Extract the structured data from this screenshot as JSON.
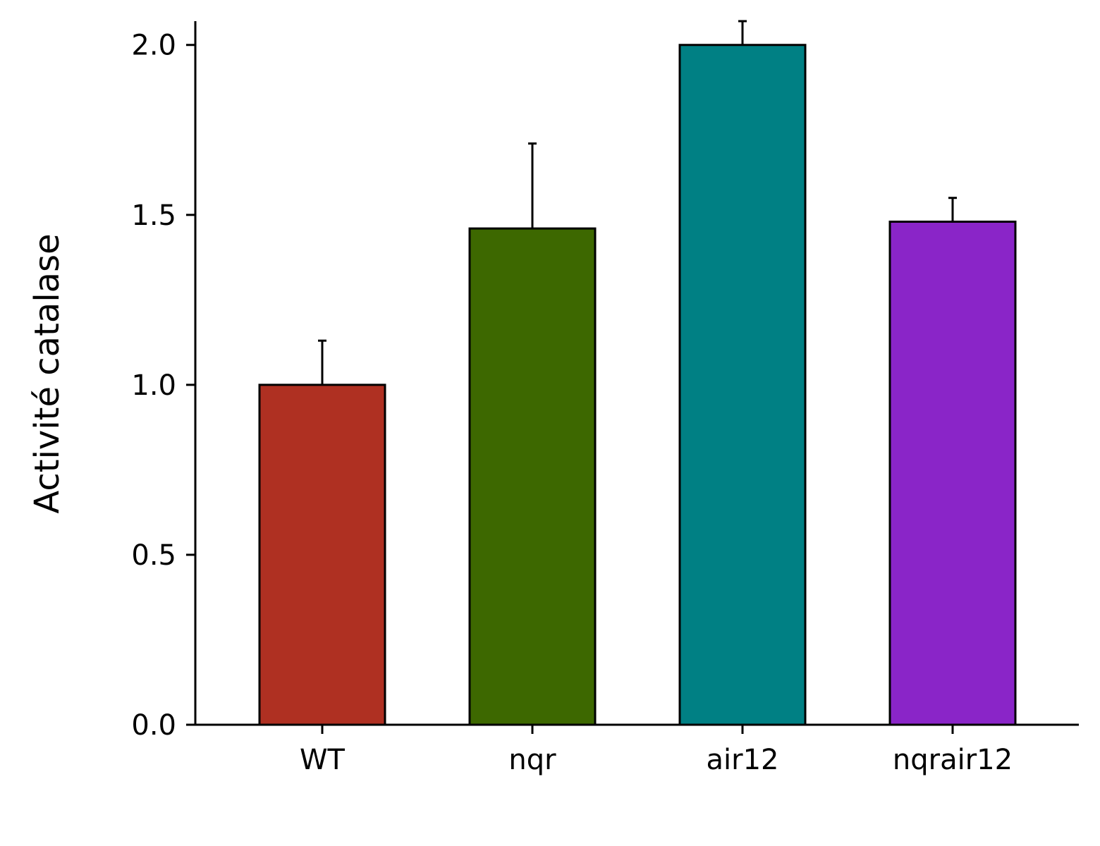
{
  "chart_data": {
    "type": "bar",
    "title": "",
    "xlabel": "",
    "ylabel": "Activité catalase",
    "categories": [
      "WT",
      "nqr",
      "air12",
      "nqrair12"
    ],
    "values": [
      1.0,
      1.46,
      2.0,
      1.48
    ],
    "errors": [
      0.13,
      0.25,
      0.07,
      0.07
    ],
    "colors": [
      "#AF3022",
      "#3D6800",
      "#008084",
      "#8A25C8"
    ],
    "ylim": [
      0,
      2.07
    ],
    "yticks": [
      "0.0",
      "0.5",
      "1.0",
      "1.5",
      "2.0"
    ],
    "grid": false,
    "legend": "none"
  }
}
